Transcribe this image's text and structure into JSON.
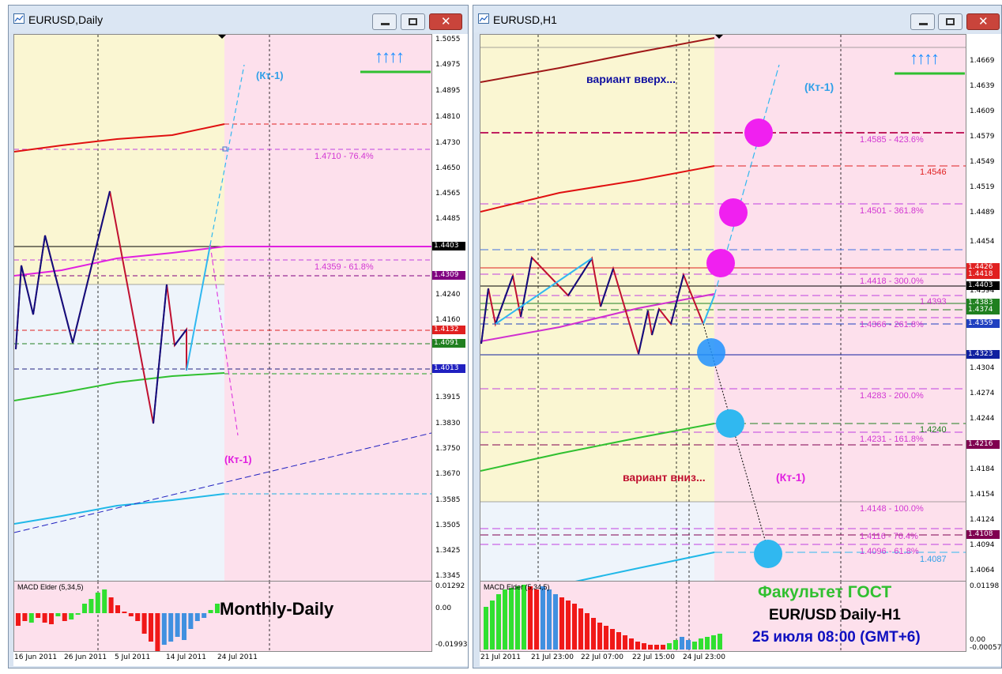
{
  "left_window": {
    "title": "EURUSD,Daily",
    "price_ticks": [
      "1.5055",
      "1.4975",
      "1.4895",
      "1.4810",
      "1.4730",
      "1.4650",
      "1.4565",
      "1.4485",
      "1.4240",
      "1.4160",
      "1.3915",
      "1.3830",
      "1.3750",
      "1.3670",
      "1.3585",
      "1.3505",
      "1.3425",
      "1.3345"
    ],
    "price_tags": [
      "1.4403",
      "1.4309",
      "1.4132",
      "1.4091",
      "1.4013"
    ],
    "fib_labels": [
      "1.4710 - 76.4%",
      "1.4359 - 61.8%"
    ],
    "annotation_up": "(Кт-1)",
    "annotation_down": "(Кт-1)",
    "arrows": "↑↑↑↑",
    "macd_title": "MACD Elder (5,34,5)",
    "macd_ticks": [
      "0.01292",
      "0.00",
      "-0.01993"
    ],
    "caption": "Monthly-Daily",
    "date_labels": [
      "16 Jun 2011",
      "26 Jun 2011",
      "5 Jul 2011",
      "14 Jul 2011",
      "24 Jul 2011"
    ]
  },
  "right_window": {
    "title": "EURUSD,H1",
    "price_ticks": [
      "1.4669",
      "1.4639",
      "1.4609",
      "1.4579",
      "1.4549",
      "1.4519",
      "1.4489",
      "1.4454",
      "1.4394",
      "1.4304",
      "1.4274",
      "1.4244",
      "1.4184",
      "1.4154",
      "1.4124",
      "1.4094",
      "1.4064"
    ],
    "price_tags": [
      "1.4426",
      "1.4418",
      "1.4403",
      "1.4383",
      "1.4374",
      "1.4359",
      "1.4323",
      "1.4216",
      "1.4108"
    ],
    "fib_labels": [
      "1.4585 - 423.6%",
      "1.4501 - 361.8%",
      "1.4418 - 300.0%",
      "1.4366 - 261.8%",
      "1.4283 - 200.0%",
      "1.4231 - 161.8%",
      "1.4148 - 100.0%",
      "1.4116 - 76.4%",
      "1.4096 - 61.8%"
    ],
    "level_labels": [
      "1.4546",
      "1.4393",
      "1.4240",
      "1.4087"
    ],
    "variant_up": "вариант вверх...",
    "variant_down": "вариант вниз...",
    "annotation_up": "(Кт-1)",
    "annotation_down": "(Кт-1)",
    "arrows": "↑↑↑↑",
    "macd_title": "MACD Elder (5,34,5)",
    "macd_ticks": [
      "0.01198",
      "0.00",
      "-0.00057"
    ],
    "caption_faculty": "Факультет ГОСТ",
    "caption_pair": "EUR/USD Daily-H1",
    "caption_date": "25 июля 08:00 (GMT+6)",
    "date_labels": [
      "21 Jul 2011",
      "21 Jul 23:00",
      "22 Jul 07:00",
      "22 Jul 15:00",
      "24 Jul 23:00"
    ]
  },
  "colors": {
    "title_bg": "#dbe6f3",
    "yellow_zone": "#faf6d2",
    "pink_zone": "#fde0ec",
    "blue_zone": "#eef4fb",
    "fib_magenta": "#d236d2",
    "up_blue": "#1e90ff"
  }
}
